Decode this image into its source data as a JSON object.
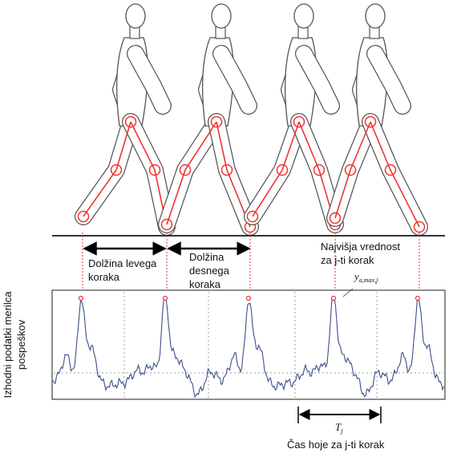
{
  "left_step": {
    "lines": [
      "Dolžina levega",
      "koraka"
    ]
  },
  "right_step": {
    "lines": [
      "Dolžina",
      "desnega",
      "koraka"
    ]
  },
  "peak": {
    "lines": [
      "Najvišja vrednost",
      "za j-ti korak"
    ],
    "symbol": {
      "base": "y",
      "sub": "a,max,j"
    }
  },
  "period": {
    "symbol": {
      "base": "T",
      "sub": "j"
    },
    "caption": "Čas hoje za j-ti korak"
  },
  "y_axis_label": {
    "lines": [
      "Izhodni podatki merilca",
      "pospeškov"
    ]
  }
}
